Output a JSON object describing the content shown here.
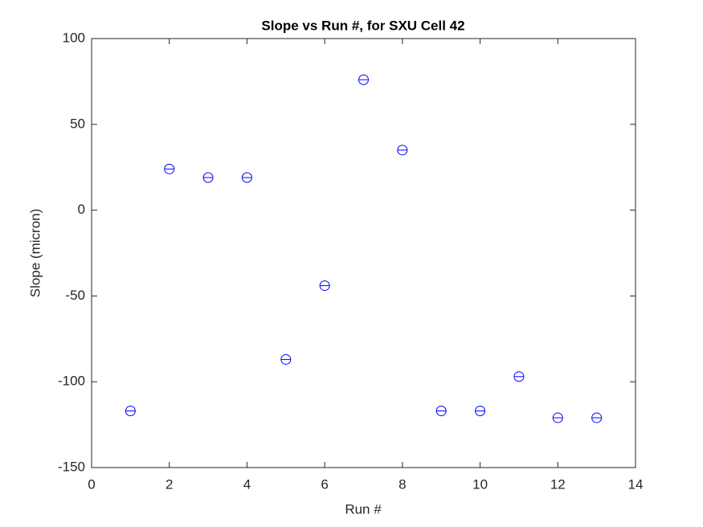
{
  "chart_data": {
    "type": "scatter",
    "title": "Slope vs Run #, for SXU Cell 42",
    "x_label": "Run #",
    "y_label": "Slope (micron)",
    "x": [
      1,
      2,
      3,
      4,
      5,
      6,
      7,
      8,
      9,
      10,
      11,
      12,
      13
    ],
    "series": [
      {
        "color": "#0000ff",
        "values": [
          -117,
          24,
          19,
          19,
          -87,
          -44,
          76,
          35,
          -117,
          -117,
          -97,
          -121,
          -121
        ]
      }
    ],
    "xlim": [
      0,
      14
    ],
    "xticks": [
      0,
      2,
      4,
      6,
      8,
      10,
      12,
      14
    ],
    "ylim": [
      -150,
      100
    ],
    "yticks": [
      -150,
      -100,
      -50,
      0,
      50,
      100
    ],
    "grid": false
  }
}
